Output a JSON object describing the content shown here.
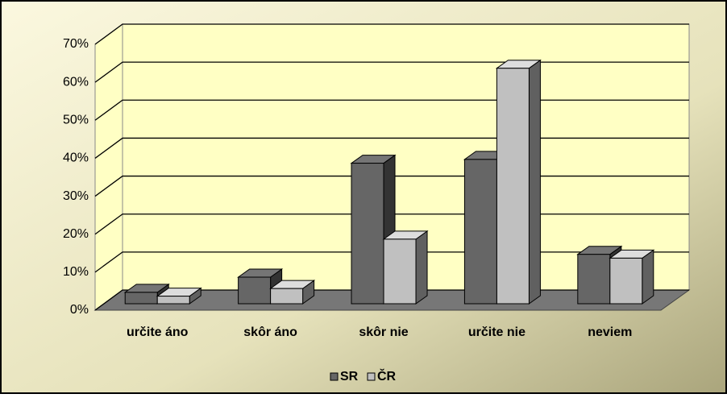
{
  "chart_data": {
    "type": "bar3d",
    "categories": [
      "určite áno",
      "skôr áno",
      "skôr nie",
      "určite nie",
      "neviem"
    ],
    "series": [
      {
        "name": "SR",
        "color": "#666666",
        "values": [
          3,
          7,
          37,
          38,
          13
        ]
      },
      {
        "name": "ČR",
        "color": "#c0c0c0",
        "values": [
          2,
          4,
          17,
          62,
          12
        ]
      }
    ],
    "ylim": [
      0,
      70
    ],
    "yticks": [
      {
        "value": 0,
        "label": "0%"
      },
      {
        "value": 10,
        "label": "10%"
      },
      {
        "value": 20,
        "label": "20%"
      },
      {
        "value": 30,
        "label": "30%"
      },
      {
        "value": 40,
        "label": "40%"
      },
      {
        "value": 50,
        "label": "50%"
      },
      {
        "value": 60,
        "label": "60%"
      },
      {
        "value": 70,
        "label": "70%"
      }
    ],
    "grid": true,
    "legend": "bottom"
  }
}
